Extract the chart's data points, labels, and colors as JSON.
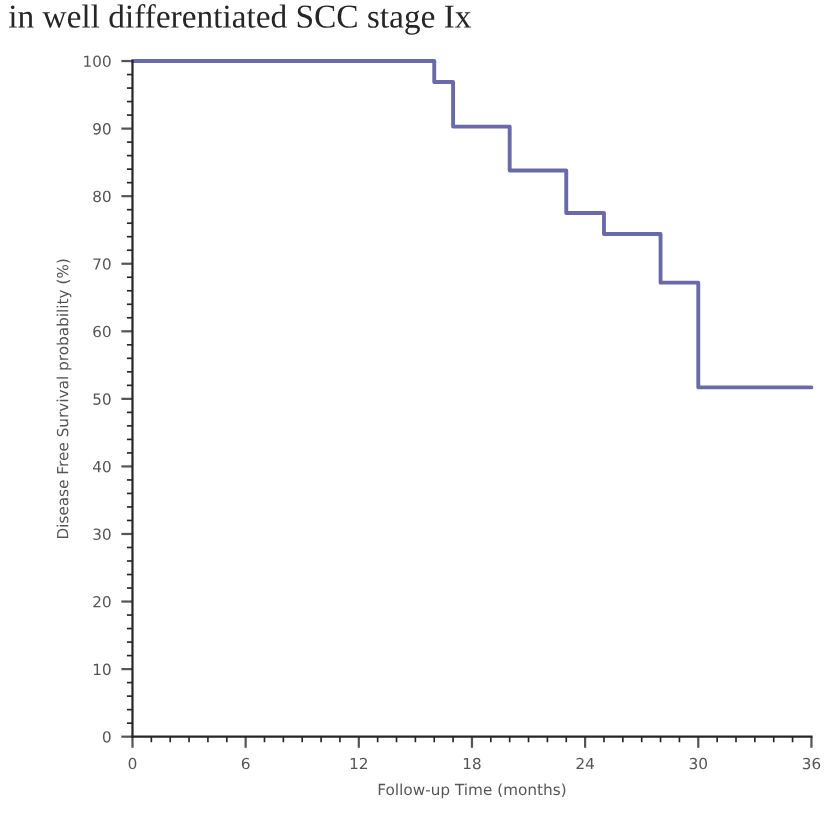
{
  "chart_data": {
    "type": "step",
    "title": "in well differentiated SCC stage Ix",
    "xlabel": "Follow-up Time (months)",
    "ylabel": "Disease Free Survival probability (%)",
    "x": [
      0,
      16,
      17,
      20,
      23,
      25,
      28,
      30,
      36
    ],
    "series": [
      {
        "color": "#6a6aa8",
        "values": [
          100,
          96.9,
          90.3,
          83.8,
          77.5,
          74.4,
          67.2,
          51.7,
          51.7
        ]
      }
    ],
    "xlim": [
      0,
      36
    ],
    "xticks": [
      0,
      6,
      12,
      18,
      24,
      30,
      36
    ],
    "ylim": [
      0,
      100
    ],
    "yticks": [
      0,
      10,
      20,
      30,
      40,
      50,
      60,
      70,
      80,
      90,
      100
    ],
    "grid": false,
    "legend": false,
    "line_style": "solid",
    "marker": "none"
  }
}
